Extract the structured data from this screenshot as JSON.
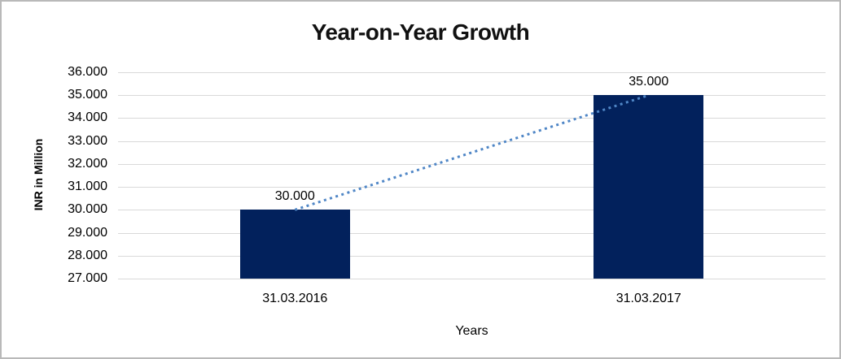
{
  "chart_data": {
    "type": "bar",
    "title": "Year-on-Year Growth",
    "xlabel": "Years",
    "ylabel": "INR in Million",
    "categories": [
      "31.03.2016",
      "31.03.2017"
    ],
    "values": [
      30000,
      35000
    ],
    "value_labels": [
      "30.000",
      "35.000"
    ],
    "ylim": [
      27000,
      36000
    ],
    "ytick_labels": [
      "27.000",
      "28.000",
      "29.000",
      "30.000",
      "31.000",
      "32.000",
      "33.000",
      "34.000",
      "35.000",
      "36.000"
    ],
    "grid": true,
    "legend": false,
    "trendline_style": "dotted",
    "colors": {
      "bar": "#02215C",
      "trendline": "#4F86C6",
      "gridline": "#D9D9D9",
      "text": "#000000",
      "frame_border": "#B9B9B9"
    }
  }
}
